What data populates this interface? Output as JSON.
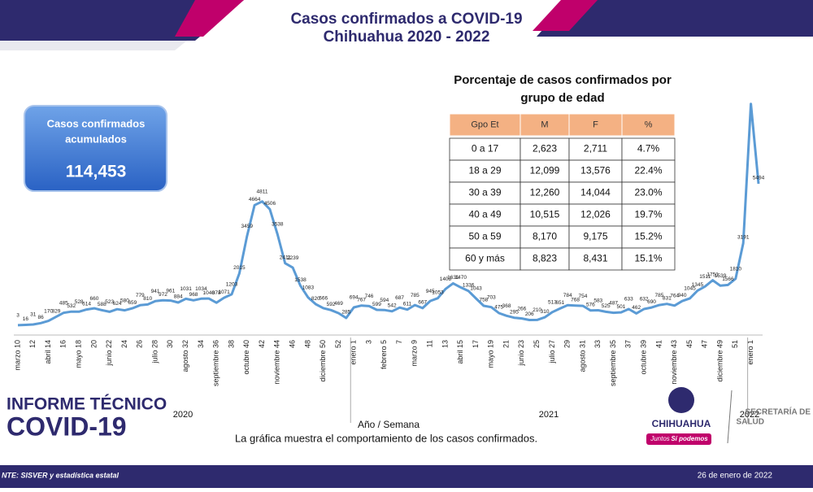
{
  "header": {
    "title_line1": "Casos confirmados a COVID-19",
    "title_line2": "Chihuahua 2020 - 2022"
  },
  "summary": {
    "label_line1": "Casos confirmados",
    "label_line2": "acumulados",
    "value": "114,453"
  },
  "age_table": {
    "title_line1": "Porcentaje de casos confirmados por",
    "title_line2": "grupo de edad",
    "columns": [
      "Gpo Et",
      "M",
      "F",
      "%"
    ],
    "rows": [
      [
        "0 a 17",
        "2,623",
        "2,711",
        "4.7%"
      ],
      [
        "18 a 29",
        "12,099",
        "13,576",
        "22.4%"
      ],
      [
        "30 a 39",
        "12,260",
        "14,044",
        "23.0%"
      ],
      [
        "40 a 49",
        "10,515",
        "12,026",
        "19.7%"
      ],
      [
        "50 a 59",
        "8,170",
        "9,175",
        "15.2%"
      ],
      [
        "60 y más",
        "8,823",
        "8,431",
        "15.1%"
      ]
    ]
  },
  "chart_data": {
    "type": "line",
    "color": "#5b9bd5",
    "x_title": "Año / Semana",
    "years": [
      "2020",
      "2021",
      "2022"
    ],
    "categories": [
      "marzo 10",
      null,
      "12",
      null,
      "abril 14",
      null,
      "16",
      null,
      "mayo 18",
      null,
      "20",
      null,
      "junio 22",
      null,
      "24",
      null,
      "26",
      null,
      "julio 28",
      null,
      "30",
      null,
      "agosto 32",
      null,
      "34",
      null,
      "septiembre 36",
      null,
      "38",
      null,
      "octubre 40",
      null,
      "42",
      null,
      "noviembre 44",
      null,
      "46",
      null,
      "48",
      null,
      "diciembre 50",
      null,
      "52",
      null,
      "enero 1",
      null,
      "3",
      null,
      "febrero 5",
      null,
      "7",
      null,
      "marzo 9",
      null,
      "11",
      null,
      "13",
      null,
      "abril 15",
      null,
      "17",
      null,
      "mayo 19",
      null,
      "21",
      null,
      "junio 23",
      null,
      "25",
      null,
      "julio 27",
      null,
      "29",
      null,
      "agosto 31",
      null,
      "33",
      null,
      "septiembre 35",
      null,
      "37",
      null,
      "octubre 39",
      null,
      "41",
      null,
      "noviembre 43",
      null,
      "45",
      null,
      "47",
      null,
      "diciembre 49",
      null,
      "51",
      null,
      "enero 1",
      null
    ],
    "values": [
      3,
      16,
      31,
      86,
      170,
      329,
      485,
      532,
      528,
      614,
      660,
      588,
      523,
      624,
      580,
      659,
      779,
      810,
      941,
      972,
      961,
      884,
      1031,
      968,
      1034,
      1040,
      878,
      1071,
      1203,
      2015,
      3459,
      4664,
      4811,
      4506,
      3538,
      2411,
      2239,
      1538,
      1083,
      820,
      666,
      592,
      469,
      285,
      694,
      767,
      746,
      599,
      594,
      542,
      687,
      611,
      785,
      667,
      945,
      1053,
      1408,
      1631,
      1470,
      1336,
      1043,
      758,
      703,
      475,
      368,
      295,
      266,
      206,
      210,
      310,
      513,
      651,
      784,
      768,
      754,
      576,
      583,
      525,
      487,
      501,
      633,
      462,
      632,
      690,
      785,
      831,
      764,
      940,
      1045,
      1345,
      1511,
      1751,
      1539,
      1566,
      1810,
      3191,
      8600,
      5494
    ],
    "value_labels": [
      "3",
      "16",
      "31",
      "86",
      "170",
      "329",
      "485",
      "532",
      "528",
      "614",
      "660",
      "588",
      "523",
      "624",
      "580",
      "659",
      "779",
      "810",
      "941",
      "972",
      "961",
      "884",
      "1031",
      "968",
      "1034",
      "1040",
      "878",
      "1071",
      "1203",
      "2015",
      "3459",
      "4664",
      "4811",
      "4506",
      "3538",
      "2411",
      "2239",
      "1538",
      "1083",
      "820",
      "666",
      "592",
      "469",
      "285",
      "694",
      "767",
      "746",
      "599",
      "594",
      "542",
      "687",
      "611",
      "785",
      "667",
      "945",
      "1053",
      "1408",
      "1631",
      "1470",
      "1336",
      "1043",
      "758",
      "703",
      "475",
      "368",
      "295",
      "266",
      "206",
      "210",
      "310",
      "513",
      "651",
      "784",
      "768",
      "754",
      "576",
      "583",
      "525",
      "487",
      "501",
      "633",
      "462",
      "632",
      "690",
      "785",
      "831",
      "764",
      "940",
      "1045",
      "1345",
      "1511",
      "1751",
      "1539",
      "1566",
      "1810",
      "3191",
      null,
      "5494"
    ],
    "ylim": [
      0,
      9000
    ]
  },
  "caption": "La gráfica muestra el comportamiento de los casos confirmados.",
  "branding": {
    "report_line1": "INFORME TÉCNICO",
    "report_line2": "COVID-19",
    "state": "CHIHUAHUA",
    "slogan1": "Juntos",
    "slogan2": "Sí podemos",
    "agency_line1": "SECRETARÍA DE",
    "agency_line2": "SALUD"
  },
  "footer": {
    "source": "NTE: SISVER y estadística estatal",
    "date": "26 de enero de 2022"
  }
}
